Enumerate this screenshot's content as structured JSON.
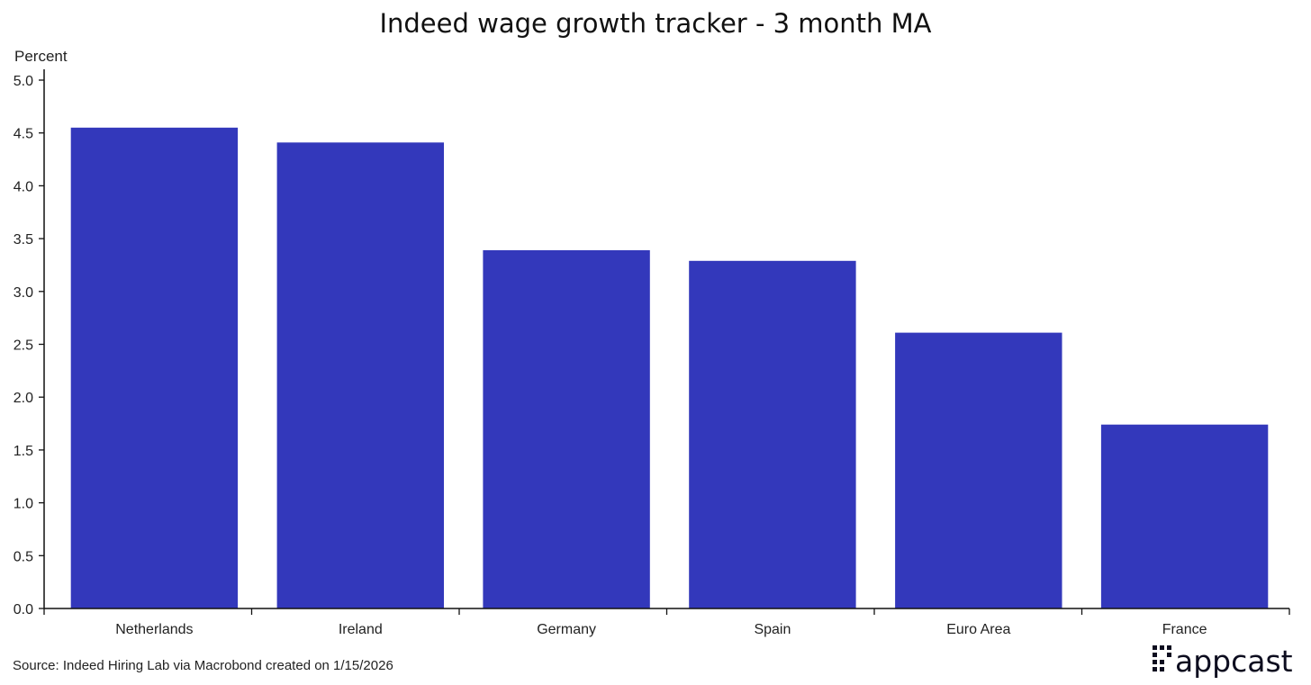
{
  "chart_data": {
    "type": "bar",
    "title": "Indeed wage growth tracker - 3 month MA",
    "ylabel": "Percent",
    "xlabel": "",
    "categories": [
      "Netherlands",
      "Ireland",
      "Germany",
      "Spain",
      "Euro Area",
      "France"
    ],
    "values": [
      4.55,
      4.41,
      3.39,
      3.29,
      2.61,
      1.74
    ],
    "ylim": [
      0,
      5.0
    ],
    "yticks": [
      "0.0",
      "0.5",
      "1.0",
      "1.5",
      "2.0",
      "2.5",
      "3.0",
      "3.5",
      "4.0",
      "4.5",
      "5.0"
    ],
    "grid": false,
    "bar_color": "#3338bb"
  },
  "footer": {
    "source": "Source: Indeed Hiring Lab via Macrobond created on 1/15/2026",
    "brand": "appcast",
    "brand_icon": "appcast-logo-icon"
  }
}
